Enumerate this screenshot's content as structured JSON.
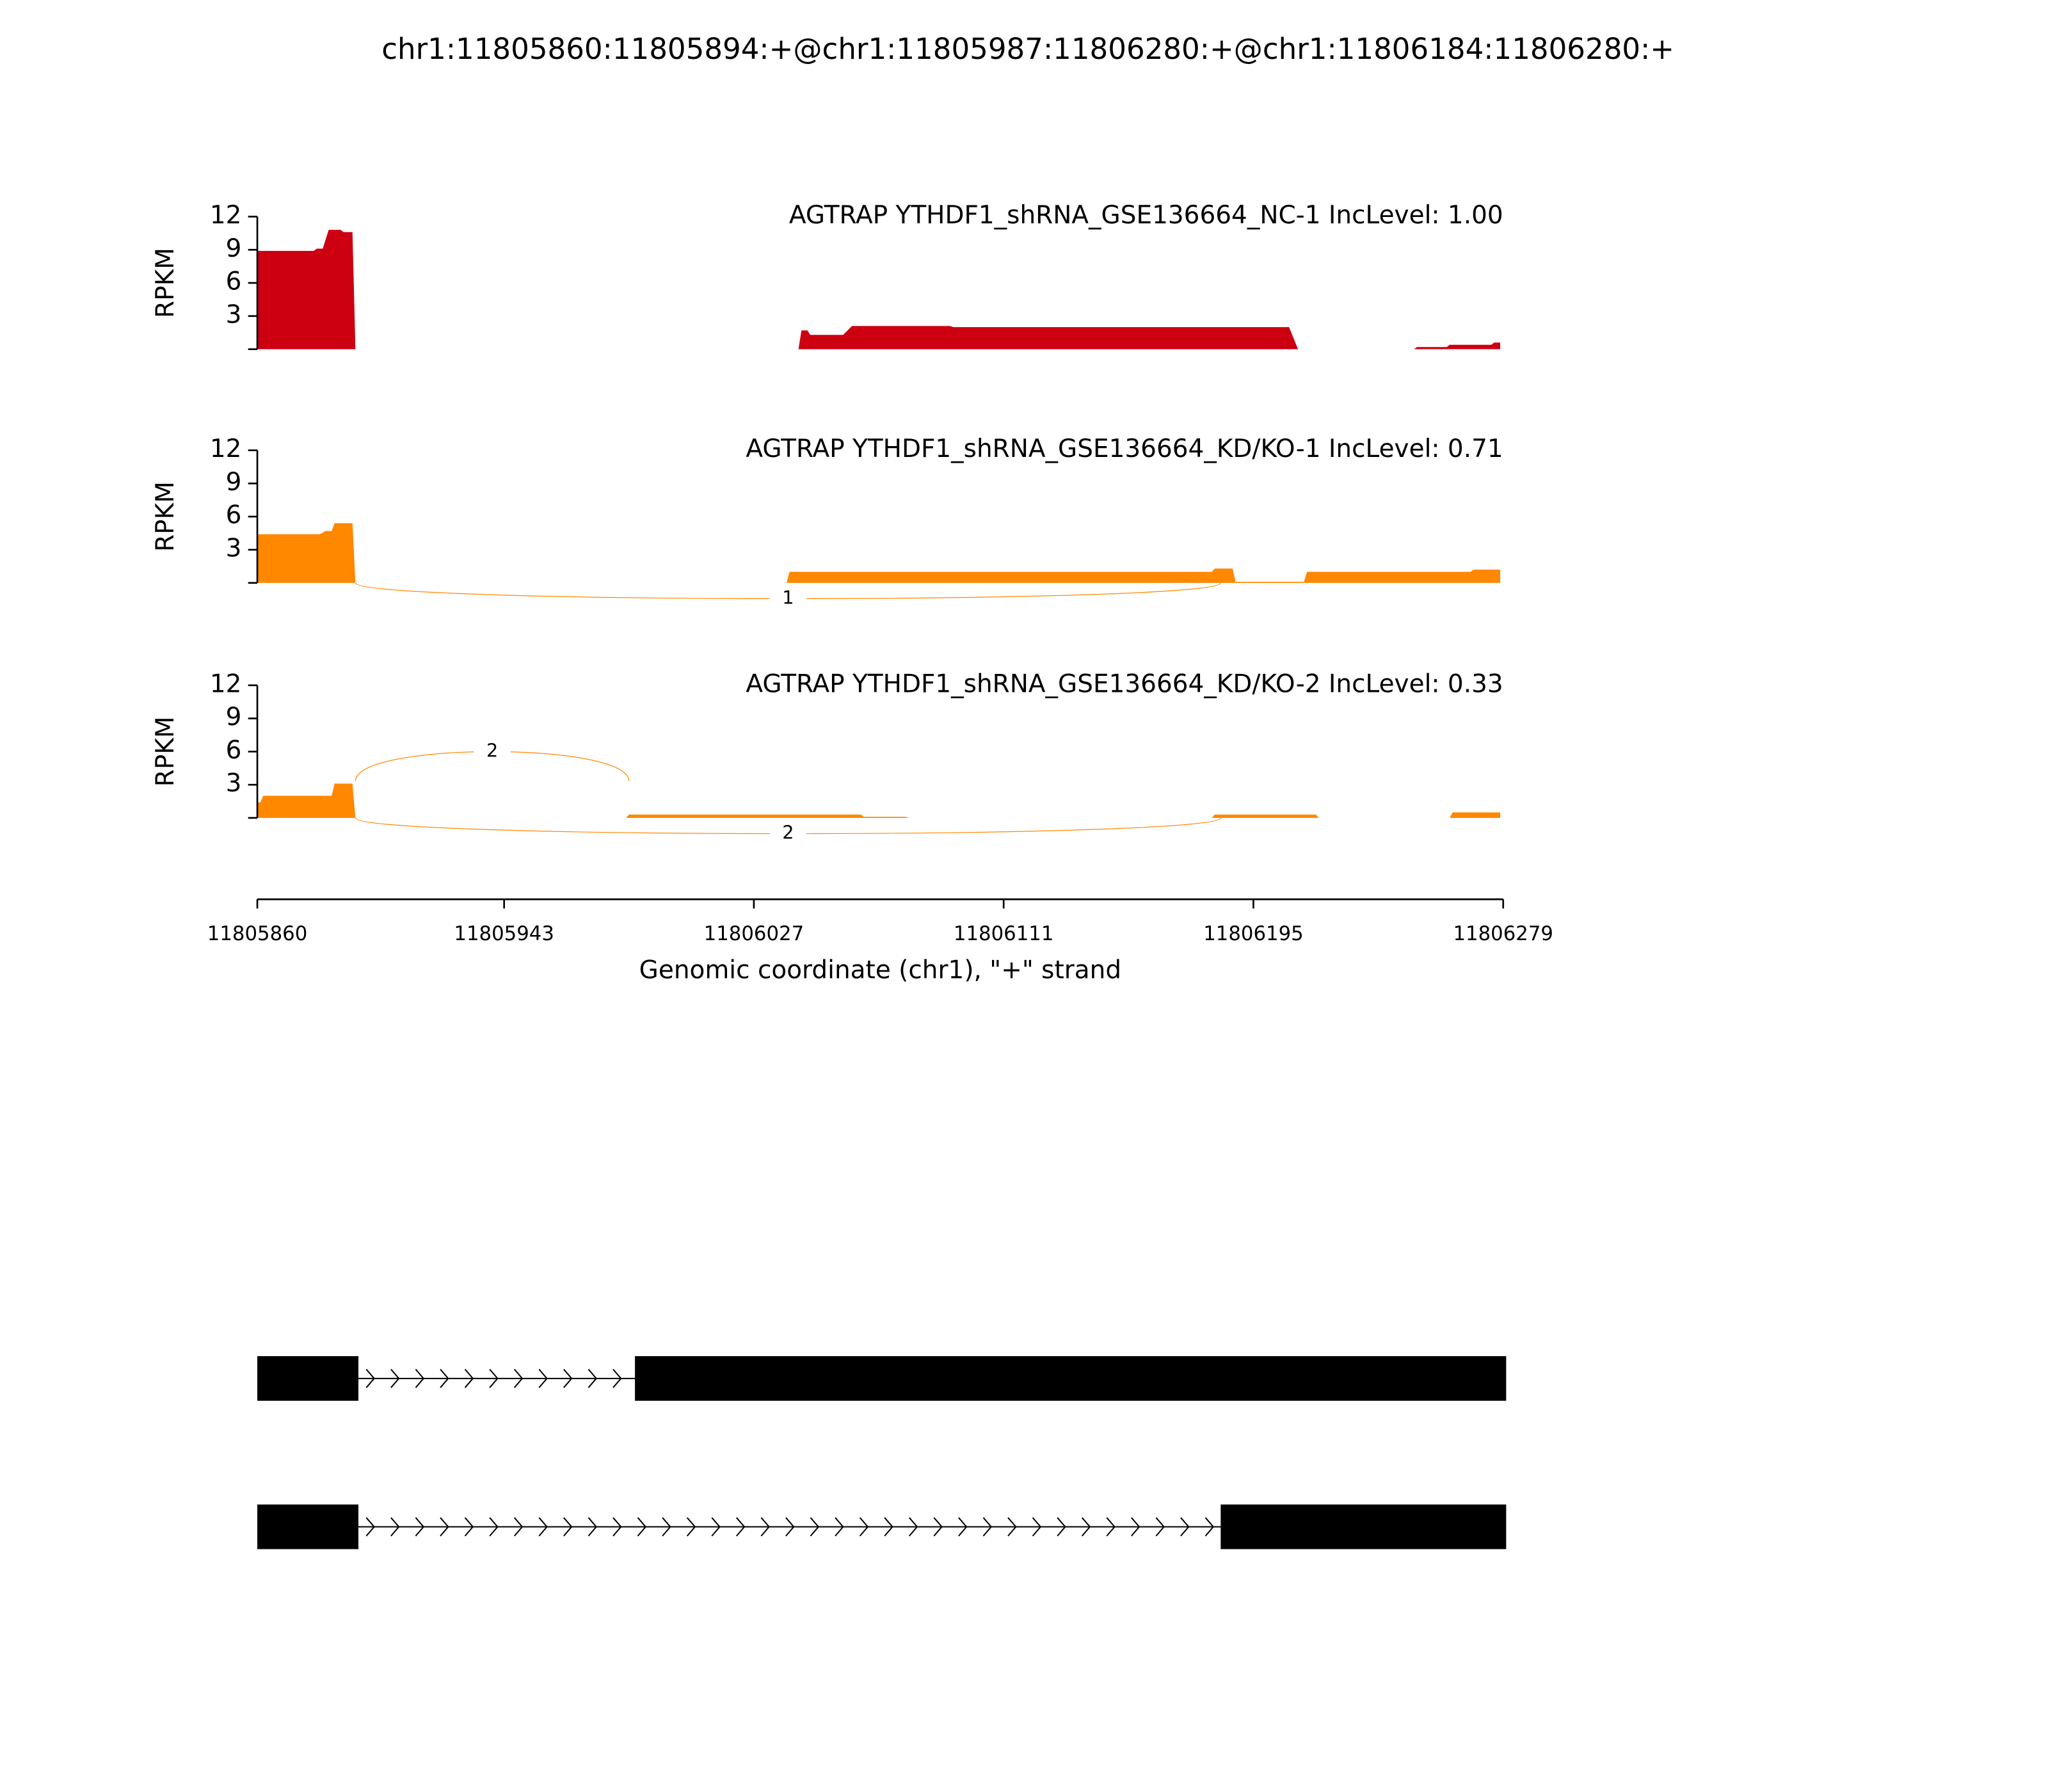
{
  "title": "chr1:11805860:11805894:+@chr1:11805987:11806280:+@chr1:11806184:11806280:+",
  "chart_data": [
    {
      "type": "area",
      "title": "AGTRAP YTHDF1_shRNA_GSE136664_NC-1 IncLevel: 1.00",
      "ylabel": "RPKM",
      "color": "#cc0011",
      "x": [
        11805860,
        11805879,
        11805880,
        11805882,
        11805884,
        11805888,
        11805889,
        11805892,
        11805893,
        11806042,
        11806043,
        11806045,
        11806046,
        11806057,
        11806060,
        11806093,
        11806094,
        11806207,
        11806210,
        11806249,
        11806250,
        11806260,
        11806261,
        11806275,
        11806276,
        11806278
      ],
      "values": [
        8.9,
        8.9,
        9.1,
        9.1,
        10.8,
        10.8,
        10.6,
        10.6,
        0,
        0,
        1.7,
        1.7,
        1.3,
        1.3,
        2.1,
        2.1,
        2.0,
        2.0,
        0,
        0,
        0.2,
        0.2,
        0.4,
        0.4,
        0.6,
        0.6
      ],
      "xlim": [
        11805860,
        11806279
      ],
      "ylim": [
        0,
        12
      ],
      "yticks": [
        3,
        6,
        9,
        12
      ],
      "junctions": []
    },
    {
      "type": "area",
      "title": "AGTRAP YTHDF1_shRNA_GSE136664_KD/KO-1 IncLevel: 0.71",
      "ylabel": "RPKM",
      "color": "#ff8800",
      "x": [
        11805860,
        11805881,
        11805883,
        11805885,
        11805886,
        11805892,
        11805893,
        11806038,
        11806039,
        11806181,
        11806182,
        11806188,
        11806189,
        11806212,
        11806213,
        11806268,
        11806269,
        11806278
      ],
      "values": [
        4.4,
        4.4,
        4.7,
        4.7,
        5.4,
        5.4,
        0,
        0,
        1.0,
        1.0,
        1.3,
        1.3,
        0.1,
        0.1,
        1.0,
        1.0,
        1.2,
        1.2
      ],
      "xlim": [
        11805860,
        11806279
      ],
      "ylim": [
        0,
        12
      ],
      "yticks": [
        3,
        6,
        9,
        12
      ],
      "junctions": [
        {
          "start": 11805893,
          "end": 11806184,
          "count": 1,
          "side": "below"
        }
      ]
    },
    {
      "type": "area",
      "title": "AGTRAP YTHDF1_shRNA_GSE136664_KD/KO-2 IncLevel: 0.33",
      "ylabel": "RPKM",
      "color": "#ff8800",
      "x": [
        11805860,
        11805861,
        11805862,
        11805885,
        11805886,
        11805892,
        11805893,
        11805984,
        11805985,
        11806063,
        11806064,
        11806078,
        11806079,
        11806181,
        11806182,
        11806216,
        11806217,
        11806261,
        11806262,
        11806278
      ],
      "values": [
        1.4,
        1.4,
        2.0,
        2.0,
        3.1,
        3.1,
        0,
        0,
        0.3,
        0.3,
        0.1,
        0.1,
        0,
        0,
        0.3,
        0.3,
        0,
        0,
        0.5,
        0.5
      ],
      "xlim": [
        11805860,
        11806279
      ],
      "ylim": [
        0,
        12
      ],
      "yticks": [
        3,
        6,
        9,
        12
      ],
      "xticks": [
        11805860,
        11805943,
        11806027,
        11806111,
        11806195,
        11806279
      ],
      "xlabel": "Genomic coordinate (chr1), \"+\" strand",
      "junctions": [
        {
          "start": 11805893,
          "end": 11805985,
          "count": 2,
          "side": "above"
        },
        {
          "start": 11805893,
          "end": 11806184,
          "count": 2,
          "side": "below"
        }
      ]
    },
    {
      "type": "gene_structure",
      "xlim": [
        11805860,
        11806279
      ],
      "transcripts": [
        {
          "exons": [
            [
              11805860,
              11805894
            ],
            [
              11805987,
              11806280
            ]
          ]
        },
        {
          "exons": [
            [
              11805860,
              11805894
            ],
            [
              11806184,
              11806280
            ]
          ]
        }
      ]
    }
  ]
}
